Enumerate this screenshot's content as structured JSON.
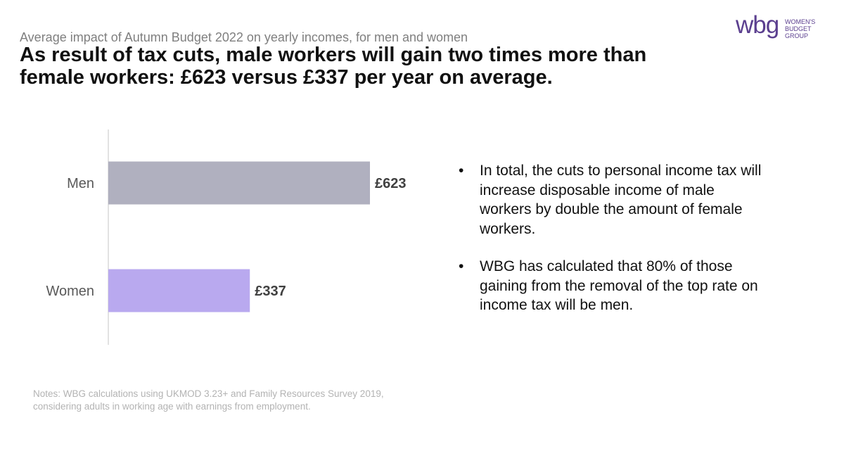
{
  "header": {
    "subtitle": "Average impact of Autumn  Budget 2022 on yearly incomes, for men and women",
    "title": "As result of tax cuts, male workers will gain two times more than female workers: £623 versus £337 per year on average."
  },
  "logo": {
    "mark": "wbg",
    "lines": [
      "WOMEN'S",
      "BUDGET",
      "GROUP"
    ]
  },
  "chart_data": {
    "type": "bar",
    "orientation": "horizontal",
    "categories": [
      "Men",
      "Women"
    ],
    "values": [
      623,
      337
    ],
    "value_labels": [
      "£623",
      "£337"
    ],
    "colors": [
      "#b0b0bf",
      "#b9a9ef"
    ],
    "xlim": [
      0,
      700
    ],
    "grid": false,
    "axis_color": "#d9d9d9"
  },
  "bullets": [
    {
      "marker": "•",
      "text": "In total, the cuts to personal income tax will increase disposable income of male workers by double the amount of female workers."
    },
    {
      "marker": "•",
      "text": "WBG has calculated that 80% of those gaining from the removal of the top rate on income tax will be men."
    }
  ],
  "notes": "Notes: WBG calculations using UKMOD 3.23+ and Family Resources Survey 2019, considering adults in working age with earnings from employment."
}
